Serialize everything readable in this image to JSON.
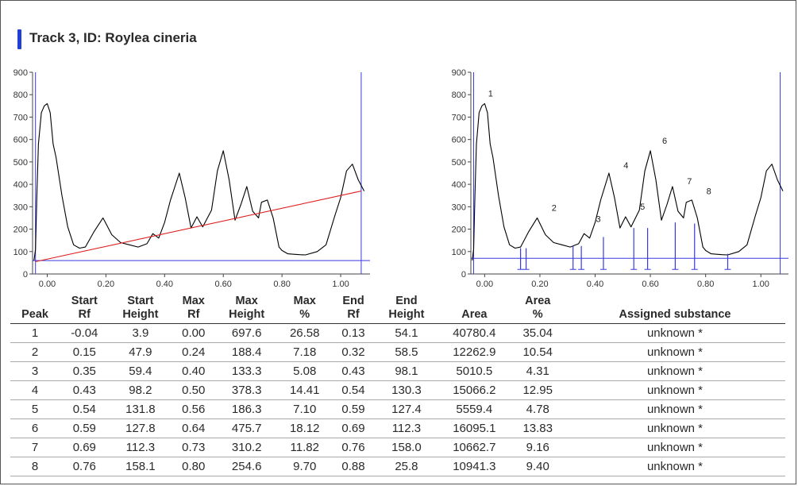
{
  "title": "Track 3, ID: Roylea cineria",
  "colors": {
    "accent": "#1f3fd6",
    "trace": "#000000",
    "baseline": "#e02020",
    "marker": "#3a3ae0"
  },
  "chart_data": [
    {
      "type": "line",
      "title": "",
      "xlim": [
        -0.05,
        1.1
      ],
      "ylim": [
        0,
        900
      ],
      "x_ticks": [
        "0.00",
        "0.20",
        "0.40",
        "0.60",
        "0.80",
        "1.00"
      ],
      "y_ticks": [
        "0",
        "100",
        "200",
        "300",
        "400",
        "500",
        "600",
        "700",
        "800",
        "900"
      ],
      "grid": false,
      "series": [
        {
          "x": [
            -0.045,
            -0.04,
            -0.035,
            -0.03,
            -0.02,
            -0.01,
            0.0,
            0.01,
            0.02,
            0.03,
            0.05,
            0.07,
            0.09,
            0.11,
            0.13,
            0.16,
            0.19,
            0.22,
            0.25,
            0.28,
            0.31,
            0.34,
            0.36,
            0.38,
            0.4,
            0.42,
            0.45,
            0.47,
            0.49,
            0.51,
            0.53,
            0.56,
            0.58,
            0.6,
            0.62,
            0.64,
            0.66,
            0.68,
            0.7,
            0.72,
            0.73,
            0.75,
            0.77,
            0.79,
            0.8,
            0.82,
            0.84,
            0.86,
            0.88,
            0.92,
            0.95,
            0.98,
            1.0,
            1.02,
            1.04,
            1.06,
            1.08
          ],
          "y": [
            60,
            110,
            360,
            580,
            720,
            750,
            760,
            720,
            580,
            520,
            350,
            210,
            130,
            115,
            120,
            190,
            250,
            175,
            140,
            130,
            120,
            135,
            180,
            160,
            230,
            330,
            450,
            340,
            205,
            255,
            210,
            285,
            460,
            550,
            420,
            240,
            310,
            390,
            280,
            250,
            320,
            330,
            250,
            120,
            105,
            90,
            88,
            86,
            85,
            100,
            130,
            260,
            340,
            460,
            490,
            420,
            370
          ]
        },
        {
          "name": "baseline",
          "x": [
            -0.04,
            1.07
          ],
          "y": [
            55,
            370
          ]
        }
      ],
      "markers_x": [
        -0.04,
        1.07
      ],
      "threshold_y": 60
    },
    {
      "type": "line",
      "title": "",
      "xlim": [
        -0.05,
        1.1
      ],
      "ylim": [
        0,
        900
      ],
      "x_ticks": [
        "0.00",
        "0.20",
        "0.40",
        "0.60",
        "0.80",
        "1.00"
      ],
      "y_ticks": [
        "0",
        "100",
        "200",
        "300",
        "400",
        "500",
        "600",
        "700",
        "800",
        "900"
      ],
      "grid": false,
      "series": [
        {
          "x": [
            -0.045,
            -0.04,
            -0.035,
            -0.03,
            -0.02,
            -0.01,
            0.0,
            0.01,
            0.02,
            0.03,
            0.05,
            0.07,
            0.09,
            0.11,
            0.13,
            0.16,
            0.19,
            0.22,
            0.25,
            0.28,
            0.31,
            0.34,
            0.36,
            0.38,
            0.4,
            0.42,
            0.45,
            0.47,
            0.49,
            0.51,
            0.53,
            0.56,
            0.58,
            0.6,
            0.62,
            0.64,
            0.66,
            0.68,
            0.7,
            0.72,
            0.73,
            0.75,
            0.77,
            0.79,
            0.8,
            0.82,
            0.84,
            0.86,
            0.88,
            0.92,
            0.95,
            0.98,
            1.0,
            1.02,
            1.04,
            1.06,
            1.08
          ],
          "y": [
            60,
            110,
            360,
            580,
            720,
            750,
            760,
            720,
            580,
            520,
            350,
            210,
            130,
            115,
            120,
            190,
            250,
            175,
            140,
            130,
            120,
            135,
            180,
            160,
            230,
            330,
            450,
            340,
            205,
            255,
            210,
            285,
            460,
            550,
            420,
            240,
            310,
            390,
            280,
            250,
            320,
            330,
            250,
            120,
            105,
            90,
            88,
            86,
            85,
            100,
            130,
            260,
            340,
            460,
            490,
            420,
            370
          ]
        }
      ],
      "peak_labels": [
        {
          "label": "1",
          "x": 0.01,
          "y": 770
        },
        {
          "label": "2",
          "x": 0.24,
          "y": 260
        },
        {
          "label": "3",
          "x": 0.4,
          "y": 210
        },
        {
          "label": "4",
          "x": 0.5,
          "y": 450
        },
        {
          "label": "5",
          "x": 0.56,
          "y": 265
        },
        {
          "label": "6",
          "x": 0.64,
          "y": 560
        },
        {
          "label": "7",
          "x": 0.73,
          "y": 380
        },
        {
          "label": "8",
          "x": 0.8,
          "y": 335
        }
      ],
      "boundaries": [
        {
          "x": 0.13,
          "y": 115
        },
        {
          "x": 0.15,
          "y": 115
        },
        {
          "x": 0.32,
          "y": 125
        },
        {
          "x": 0.35,
          "y": 125
        },
        {
          "x": 0.43,
          "y": 165
        },
        {
          "x": 0.54,
          "y": 205
        },
        {
          "x": 0.59,
          "y": 205
        },
        {
          "x": 0.69,
          "y": 230
        },
        {
          "x": 0.76,
          "y": 225
        },
        {
          "x": 0.88,
          "y": 90
        }
      ],
      "markers_x": [
        -0.04,
        1.07
      ],
      "threshold_y": 70
    }
  ],
  "table": {
    "headers": [
      [
        "",
        "Peak"
      ],
      [
        "Start",
        "Rf"
      ],
      [
        "Start",
        "Height"
      ],
      [
        "Max",
        "Rf"
      ],
      [
        "Max",
        "Height"
      ],
      [
        "Max",
        "%"
      ],
      [
        "End",
        "Rf"
      ],
      [
        "End",
        "Height"
      ],
      [
        "",
        "Area"
      ],
      [
        "Area",
        "%"
      ],
      [
        "",
        "Assigned substance"
      ]
    ],
    "rows": [
      [
        "1",
        "-0.04",
        "3.9",
        "0.00",
        "697.6",
        "26.58",
        "0.13",
        "54.1",
        "40780.4",
        "35.04",
        "unknown *"
      ],
      [
        "2",
        "0.15",
        "47.9",
        "0.24",
        "188.4",
        "7.18",
        "0.32",
        "58.5",
        "12262.9",
        "10.54",
        "unknown *"
      ],
      [
        "3",
        "0.35",
        "59.4",
        "0.40",
        "133.3",
        "5.08",
        "0.43",
        "98.1",
        "5010.5",
        "4.31",
        "unknown *"
      ],
      [
        "4",
        "0.43",
        "98.2",
        "0.50",
        "378.3",
        "14.41",
        "0.54",
        "130.3",
        "15066.2",
        "12.95",
        "unknown *"
      ],
      [
        "5",
        "0.54",
        "131.8",
        "0.56",
        "186.3",
        "7.10",
        "0.59",
        "127.4",
        "5559.4",
        "4.78",
        "unknown *"
      ],
      [
        "6",
        "0.59",
        "127.8",
        "0.64",
        "475.7",
        "18.12",
        "0.69",
        "112.3",
        "16095.1",
        "13.83",
        "unknown *"
      ],
      [
        "7",
        "0.69",
        "112.3",
        "0.73",
        "310.2",
        "11.82",
        "0.76",
        "158.0",
        "10662.7",
        "9.16",
        "unknown *"
      ],
      [
        "8",
        "0.76",
        "158.1",
        "0.80",
        "254.6",
        "9.70",
        "0.88",
        "25.8",
        "10941.3",
        "9.40",
        "unknown *"
      ]
    ]
  }
}
